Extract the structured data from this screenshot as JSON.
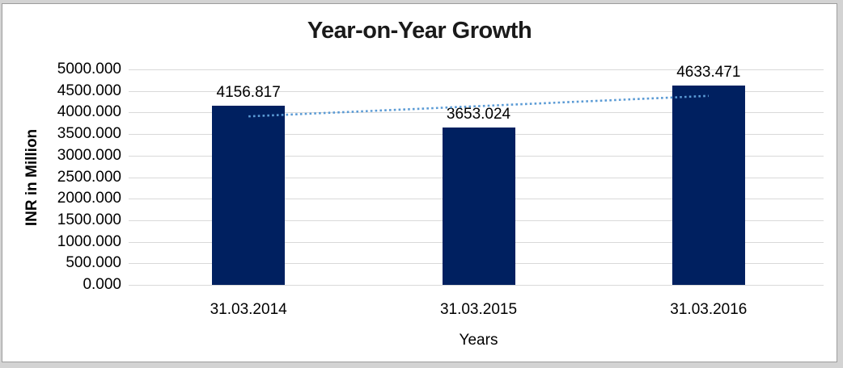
{
  "frame": {
    "outer_background": "#d3d3d3",
    "chart_background": "#ffffff",
    "border_color": "#9c9c9c"
  },
  "chart_data": {
    "type": "bar",
    "title": "Year-on-Year Growth",
    "title_color": "#1a1a1a",
    "categories": [
      "31.03.2014",
      "31.03.2015",
      "31.03.2016"
    ],
    "values": [
      4156.817,
      3653.024,
      4633.471
    ],
    "data_labels": [
      "4156.817",
      "3653.024",
      "4633.471"
    ],
    "xlabel": "Years",
    "ylabel": "INR in Million",
    "ylim": [
      0,
      5000
    ],
    "ytick_step": 500,
    "ytick_labels": [
      "0.000",
      "500.000",
      "1000.000",
      "1500.000",
      "2000.000",
      "2500.000",
      "3000.000",
      "3500.000",
      "4000.000",
      "4500.000",
      "5000.000"
    ],
    "grid": true,
    "legend_position": "none",
    "bar_color": "#002060",
    "gridline_color": "#d9d9d9",
    "text_color": "#000000",
    "trendline": {
      "type": "linear",
      "style": "dotted",
      "color": "#5b9bd5",
      "spans": "first-bar-center to last-bar-center"
    }
  }
}
